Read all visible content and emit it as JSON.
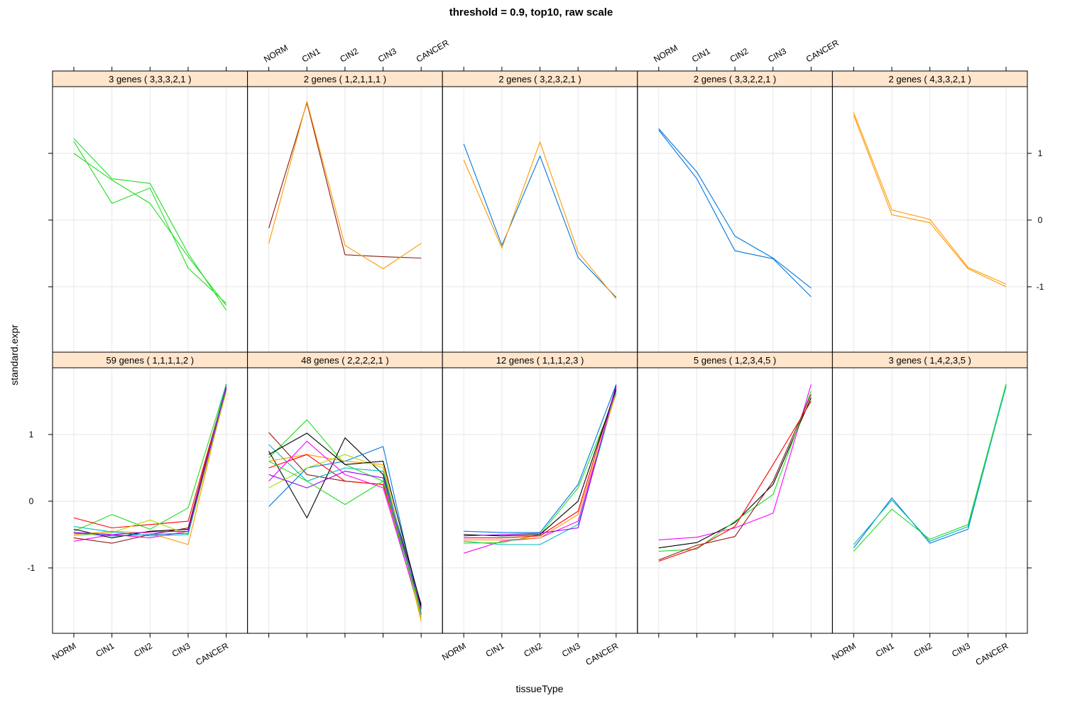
{
  "chart_data": {
    "type": "line",
    "title": "threshold = 0.9, top10, raw scale",
    "xlabel": "tissueType",
    "ylabel": "standard.expr",
    "categories": [
      "NORM",
      "CIN1",
      "CIN2",
      "CIN3",
      "CANCER"
    ],
    "ylim": [
      -1.98,
      2.0
    ],
    "yticks": [
      -1,
      0,
      1
    ],
    "grid": true,
    "strip_color": "#ffe5cc",
    "panels": [
      {
        "label": "3 genes ( 3,3,3,2,1 )",
        "series": [
          {
            "color": "#22dd22",
            "values": [
              1.22,
              0.62,
              0.55,
              -0.5,
              -1.35
            ]
          },
          {
            "color": "#22dd22",
            "values": [
              1.18,
              0.25,
              0.48,
              -0.72,
              -1.25
            ]
          },
          {
            "color": "#22dd22",
            "values": [
              1.0,
              0.6,
              0.25,
              -0.55,
              -1.28
            ]
          }
        ]
      },
      {
        "label": "2 genes ( 1,2,1,1,1 )",
        "series": [
          {
            "color": "#8b1a1a",
            "values": [
              -0.12,
              1.76,
              -0.52,
              -0.55,
              -0.57
            ]
          },
          {
            "color": "#ff9900",
            "values": [
              -0.35,
              1.78,
              -0.38,
              -0.73,
              -0.35
            ]
          }
        ]
      },
      {
        "label": "2 genes ( 3,2,3,2,1 )",
        "series": [
          {
            "color": "#0077dd",
            "values": [
              1.14,
              -0.38,
              0.96,
              -0.56,
              -1.16
            ]
          },
          {
            "color": "#ff9900",
            "values": [
              0.9,
              -0.42,
              1.17,
              -0.48,
              -1.18
            ]
          }
        ]
      },
      {
        "label": "2 genes ( 3,3,2,2,1 )",
        "series": [
          {
            "color": "#0077dd",
            "values": [
              1.37,
              0.72,
              -0.24,
              -0.57,
              -1.02
            ]
          },
          {
            "color": "#0077dd",
            "values": [
              1.35,
              0.62,
              -0.46,
              -0.58,
              -1.15
            ]
          }
        ]
      },
      {
        "label": "2 genes ( 4,3,3,2,1 )",
        "series": [
          {
            "color": "#ff9900",
            "values": [
              1.61,
              0.15,
              0.01,
              -0.71,
              -0.96
            ]
          },
          {
            "color": "#ff9900",
            "values": [
              1.57,
              0.08,
              -0.04,
              -0.73,
              -1.0
            ]
          }
        ]
      },
      {
        "label": "59 genes ( 1,1,1,1,2 )",
        "series": [
          {
            "color": "#22dd22",
            "values": [
              -0.45,
              -0.2,
              -0.42,
              -0.1,
              1.75
            ]
          },
          {
            "color": "#ff00ff",
            "values": [
              -0.6,
              -0.5,
              -0.55,
              -0.45,
              1.7
            ]
          },
          {
            "color": "#000000",
            "values": [
              -0.42,
              -0.55,
              -0.45,
              -0.42,
              1.68
            ]
          },
          {
            "color": "#ff9900",
            "values": [
              -0.5,
              -0.45,
              -0.48,
              -0.65,
              1.7
            ]
          },
          {
            "color": "#8b1a1a",
            "values": [
              -0.55,
              -0.63,
              -0.5,
              -0.4,
              1.75
            ]
          },
          {
            "color": "#0077dd",
            "values": [
              -0.48,
              -0.52,
              -0.5,
              -0.48,
              1.72
            ]
          },
          {
            "color": "#ff0000",
            "values": [
              -0.25,
              -0.4,
              -0.35,
              -0.3,
              1.72
            ]
          },
          {
            "color": "#aadd00",
            "values": [
              -0.52,
              -0.47,
              -0.28,
              -0.5,
              1.64
            ]
          },
          {
            "color": "#00bbbb",
            "values": [
              -0.38,
              -0.46,
              -0.52,
              -0.5,
              1.76
            ]
          },
          {
            "color": "#9900ff",
            "values": [
              -0.47,
              -0.5,
              -0.46,
              -0.45,
              1.7
            ]
          }
        ]
      },
      {
        "label": "48 genes ( 2,2,2,2,1 )",
        "series": [
          {
            "color": "#22dd22",
            "values": [
              0.65,
              1.22,
              0.55,
              0.3,
              -1.75
            ]
          },
          {
            "color": "#000000",
            "values": [
              0.75,
              -0.25,
              0.95,
              0.4,
              -1.55
            ]
          },
          {
            "color": "#8b1a1a",
            "values": [
              1.03,
              0.4,
              0.3,
              0.25,
              -1.6
            ]
          },
          {
            "color": "#0077dd",
            "values": [
              -0.08,
              0.5,
              0.6,
              0.82,
              -1.7
            ]
          },
          {
            "color": "#ff9900",
            "values": [
              0.6,
              0.7,
              0.6,
              0.55,
              -1.8
            ]
          },
          {
            "color": "#ff00ff",
            "values": [
              0.3,
              0.9,
              0.4,
              0.2,
              -1.7
            ]
          },
          {
            "color": "#ff0000",
            "values": [
              0.5,
              0.7,
              0.3,
              0.25,
              -1.6
            ]
          },
          {
            "color": "#aadd00",
            "values": [
              0.2,
              0.5,
              0.7,
              0.5,
              -1.75
            ]
          },
          {
            "color": "#00bbbb",
            "values": [
              0.85,
              0.3,
              0.5,
              0.45,
              -1.68
            ]
          },
          {
            "color": "#9900ff",
            "values": [
              0.4,
              0.2,
              0.45,
              0.35,
              -1.62
            ]
          },
          {
            "color": "#22dd22",
            "values": [
              0.6,
              0.3,
              -0.05,
              0.3,
              -1.65
            ]
          },
          {
            "color": "#000000",
            "values": [
              0.7,
              1.02,
              0.55,
              0.6,
              -1.58
            ]
          }
        ]
      },
      {
        "label": "12 genes ( 1,1,1,2,3 )",
        "series": [
          {
            "color": "#0077dd",
            "values": [
              -0.45,
              -0.47,
              -0.47,
              0.25,
              1.75
            ]
          },
          {
            "color": "#ff00ff",
            "values": [
              -0.78,
              -0.6,
              -0.55,
              -0.3,
              1.7
            ]
          },
          {
            "color": "#00bbbb",
            "values": [
              -0.6,
              -0.65,
              -0.65,
              -0.35,
              1.65
            ]
          },
          {
            "color": "#22dd22",
            "values": [
              -0.63,
              -0.62,
              -0.5,
              0.2,
              1.6
            ]
          },
          {
            "color": "#ff0000",
            "values": [
              -0.55,
              -0.55,
              -0.52,
              -0.15,
              1.72
            ]
          },
          {
            "color": "#000000",
            "values": [
              -0.5,
              -0.52,
              -0.5,
              0.0,
              1.68
            ]
          },
          {
            "color": "#ff9900",
            "values": [
              -0.58,
              -0.58,
              -0.55,
              -0.2,
              1.62
            ]
          },
          {
            "color": "#9900ff",
            "values": [
              -0.52,
              -0.5,
              -0.48,
              -0.4,
              1.74
            ]
          }
        ]
      },
      {
        "label": "5 genes ( 1,2,3,4,5 )",
        "series": [
          {
            "color": "#ff00ff",
            "values": [
              -0.58,
              -0.54,
              -0.4,
              -0.18,
              1.75
            ]
          },
          {
            "color": "#000000",
            "values": [
              -0.7,
              -0.62,
              -0.32,
              0.25,
              1.55
            ]
          },
          {
            "color": "#22dd22",
            "values": [
              -0.75,
              -0.72,
              -0.3,
              0.1,
              1.65
            ]
          },
          {
            "color": "#8b1a1a",
            "values": [
              -0.88,
              -0.66,
              -0.53,
              0.3,
              1.6
            ]
          },
          {
            "color": "#ff0000",
            "values": [
              -0.9,
              -0.7,
              -0.38,
              0.55,
              1.5
            ]
          }
        ]
      },
      {
        "label": "3 genes ( 1,4,2,3,5 )",
        "series": [
          {
            "color": "#0077dd",
            "values": [
              -0.7,
              0.05,
              -0.63,
              -0.42,
              1.74
            ]
          },
          {
            "color": "#00bbbb",
            "values": [
              -0.65,
              0.02,
              -0.6,
              -0.38,
              1.72
            ]
          },
          {
            "color": "#22dd22",
            "values": [
              -0.75,
              -0.12,
              -0.57,
              -0.35,
              1.76
            ]
          }
        ]
      }
    ]
  }
}
